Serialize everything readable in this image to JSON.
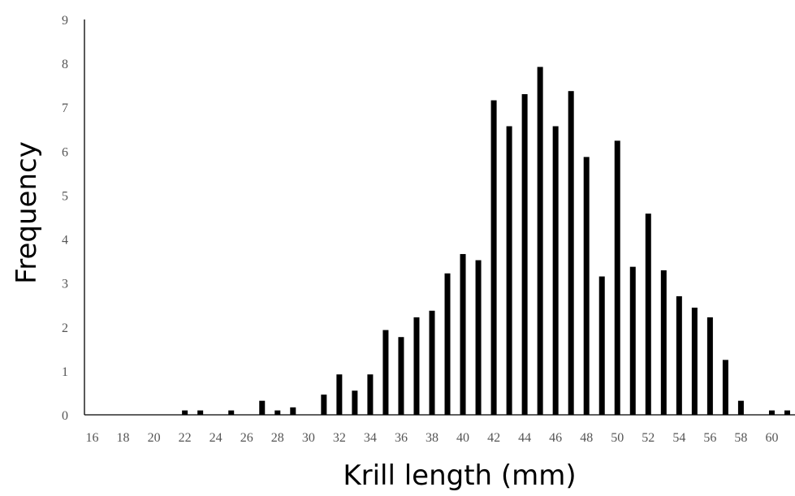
{
  "chart_data": {
    "type": "bar",
    "xlabel": "Krill length (mm)",
    "ylabel": "Frequency",
    "ylim": [
      0,
      9
    ],
    "yticks": [
      0,
      1,
      2,
      3,
      4,
      5,
      6,
      7,
      8,
      9
    ],
    "xtick_labels": [
      16,
      18,
      20,
      22,
      24,
      26,
      28,
      30,
      32,
      34,
      36,
      38,
      40,
      42,
      44,
      46,
      48,
      50,
      52,
      54,
      56,
      58,
      60
    ],
    "grid": false,
    "legend": "none",
    "bar_color": "#000000",
    "x": [
      16,
      17,
      18,
      19,
      20,
      21,
      22,
      23,
      24,
      25,
      26,
      27,
      28,
      29,
      30,
      31,
      32,
      33,
      34,
      35,
      36,
      37,
      38,
      39,
      40,
      41,
      42,
      43,
      44,
      45,
      46,
      47,
      48,
      49,
      50,
      51,
      52,
      53,
      54,
      55,
      56,
      57,
      58,
      59,
      60,
      61
    ],
    "values": [
      0,
      0,
      0,
      0,
      0,
      0,
      0.1,
      0.1,
      0,
      0.1,
      0,
      0.32,
      0.1,
      0.17,
      0,
      0.46,
      0.92,
      0.55,
      0.92,
      1.93,
      1.77,
      2.22,
      2.37,
      3.22,
      3.66,
      3.52,
      7.16,
      6.57,
      7.3,
      7.92,
      6.57,
      7.37,
      5.87,
      3.15,
      6.24,
      3.37,
      4.58,
      3.29,
      2.7,
      2.44,
      2.22,
      1.25,
      0.32,
      0,
      0.1,
      0.1
    ]
  }
}
